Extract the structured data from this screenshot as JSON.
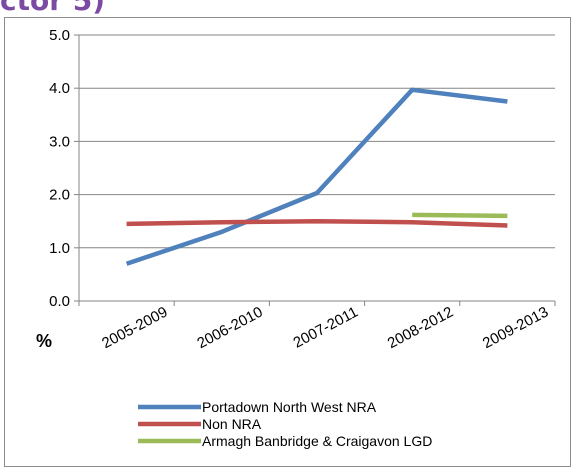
{
  "heading_fragment": "ctor 5)",
  "chart_data": {
    "type": "line",
    "categories": [
      "2005-2009",
      "2006-2010",
      "2007-2011",
      "2008-2012",
      "2009-2013"
    ],
    "ylabel": "%",
    "ylim": [
      0,
      5
    ],
    "yticks": [
      "0.0",
      "1.0",
      "2.0",
      "3.0",
      "4.0",
      "5.0"
    ],
    "grid": true,
    "legend_position": "bottom",
    "series": [
      {
        "name": "Portadown North West NRA",
        "color": "#4f81bd",
        "values": [
          0.7,
          1.3,
          2.03,
          3.97,
          3.75
        ]
      },
      {
        "name": "Non NRA",
        "color": "#c0504d",
        "values": [
          1.45,
          1.48,
          1.5,
          1.48,
          1.42
        ]
      },
      {
        "name": "Armagh Banbridge & Craigavon LGD",
        "color": "#9bbb59",
        "values": [
          null,
          null,
          null,
          1.62,
          1.6
        ]
      }
    ]
  }
}
